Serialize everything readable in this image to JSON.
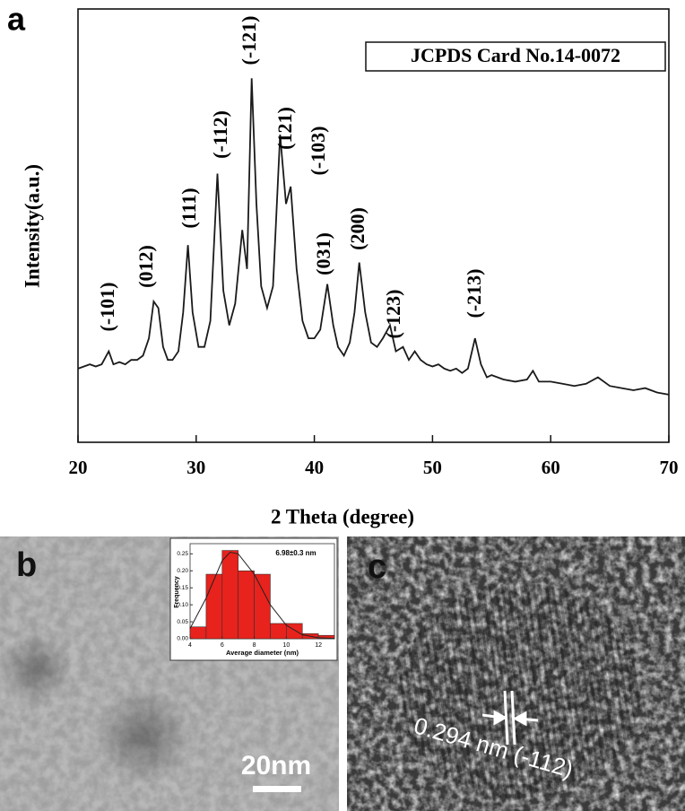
{
  "chart_data": [
    {
      "type": "line",
      "legend_box": "JCPDS Card No.14-0072",
      "xlabel": "2 Theta (degree)",
      "ylabel": "Intensity(a.u.)",
      "color": "#1a1a1a",
      "x": [
        20,
        20.5,
        21,
        21.5,
        22,
        22.6,
        23,
        23.5,
        24,
        24.5,
        25,
        25.5,
        26,
        26.4,
        26.8,
        27.2,
        27.6,
        28,
        28.5,
        28.9,
        29.3,
        29.7,
        30.2,
        30.7,
        31.2,
        31.8,
        32.3,
        32.8,
        33.3,
        33.9,
        34.3,
        34.7,
        35.1,
        35.5,
        36,
        36.5,
        37.1,
        37.6,
        38,
        38.5,
        39,
        39.5,
        40,
        40.5,
        41.1,
        41.6,
        42,
        42.5,
        43,
        43.4,
        43.8,
        44.3,
        44.8,
        45.3,
        45.8,
        46.4,
        46.9,
        47.5,
        48,
        48.5,
        49,
        49.5,
        50,
        50.5,
        51,
        51.5,
        52,
        52.5,
        53,
        53.6,
        54.1,
        54.6,
        55,
        56,
        57,
        58,
        58.5,
        59,
        60,
        61,
        62,
        63,
        64,
        65,
        66,
        67,
        68,
        69,
        70
      ],
      "values": [
        17,
        17.5,
        18,
        17.5,
        18,
        21,
        18,
        18.5,
        18,
        19,
        19,
        20,
        24,
        32.5,
        31,
        22,
        19,
        19,
        21,
        30,
        45.5,
        30,
        22,
        22,
        28,
        62,
        35,
        27,
        32,
        49,
        40,
        84,
        55,
        36,
        31,
        36,
        71,
        55,
        59,
        40,
        28,
        24,
        24,
        26,
        36.5,
        27,
        22,
        20,
        23,
        30,
        41.5,
        30,
        23,
        22,
        24,
        27,
        21,
        22,
        19,
        21,
        19,
        18,
        17.5,
        18,
        17,
        16.5,
        17,
        16,
        17,
        24,
        18,
        15,
        15.5,
        14.5,
        14,
        14.5,
        16.5,
        14,
        14,
        13.5,
        13,
        13.5,
        15,
        13,
        12.5,
        12,
        12.5,
        11.5,
        11
      ],
      "annotations": [
        "(-101)",
        "(012)",
        "(111)",
        "(-112)",
        "(-121)",
        "(121)",
        "(-103)",
        "(031)",
        "(200)",
        "(-123)",
        "(-213)"
      ],
      "xlim": [
        20,
        70
      ],
      "xticks": [
        20,
        30,
        40,
        50,
        60,
        70
      ],
      "ylim": [
        0,
        100
      ]
    },
    {
      "type": "histogram",
      "title": "6.98±0.3 nm",
      "xlabel": "Average diameter (nm)",
      "ylabel": "Frequency",
      "color": "#e8221c",
      "bins": [
        4,
        5,
        6,
        7,
        8,
        9,
        10,
        11,
        12,
        13
      ],
      "values": [
        0.035,
        0.19,
        0.26,
        0.2,
        0.19,
        0.045,
        0.045,
        0.015,
        0.01
      ],
      "fit": {
        "color": "#222222",
        "x": [
          4,
          5,
          6,
          6.5,
          7,
          8,
          9,
          10,
          11,
          12,
          13
        ],
        "values": [
          0.03,
          0.12,
          0.23,
          0.255,
          0.25,
          0.19,
          0.1,
          0.04,
          0.012,
          0.003,
          0.001
        ]
      },
      "xlim": [
        4,
        13
      ],
      "xticks": [
        4,
        6,
        8,
        10,
        12
      ],
      "ylim": [
        0,
        0.28
      ],
      "yticks": [
        {
          "value": 0,
          "label": "0.00"
        },
        {
          "value": 0.05,
          "label": "0.05"
        },
        {
          "value": 0.1,
          "label": "0.10"
        },
        {
          "value": 0.15,
          "label": "0.15"
        },
        {
          "value": 0.2,
          "label": "0.20"
        },
        {
          "value": 0.25,
          "label": "0.25"
        }
      ]
    }
  ],
  "panel_labels": [
    "a",
    "b",
    "c"
  ],
  "scale_bar": "20nm",
  "lattice_label": "0.294 nm (-112)"
}
